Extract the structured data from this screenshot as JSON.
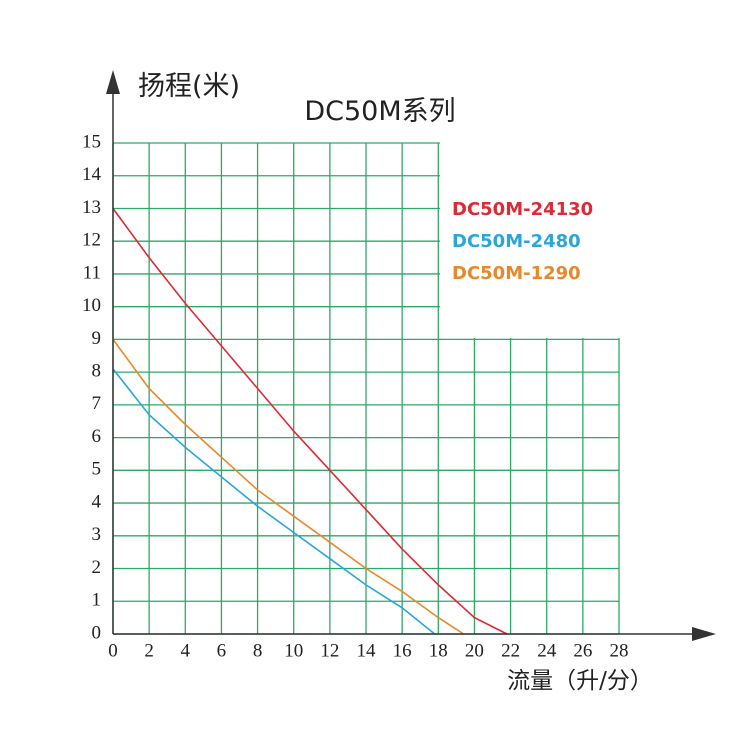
{
  "chart_data": {
    "type": "line",
    "title": "DC50M系列",
    "y_label": "扬程(米)",
    "x_label": "流量（升/分）",
    "xlim": [
      0,
      28
    ],
    "ylim": [
      0,
      15
    ],
    "xticks": [
      0,
      2,
      4,
      6,
      8,
      10,
      12,
      14,
      16,
      18,
      20,
      22,
      24,
      26,
      28
    ],
    "yticks": [
      0,
      1,
      2,
      3,
      4,
      5,
      6,
      7,
      8,
      9,
      10,
      11,
      12,
      13,
      14,
      15
    ],
    "grid": true,
    "grid_color": "#2fa866",
    "series": [
      {
        "name": "DC50M-24130",
        "color": "#dd2a35",
        "x": [
          0,
          2,
          4,
          6,
          8,
          10,
          12,
          14,
          16,
          18,
          20,
          21.8
        ],
        "values": [
          13,
          11.5,
          10.1,
          8.8,
          7.5,
          6.2,
          5.0,
          3.8,
          2.6,
          1.5,
          0.5,
          0
        ]
      },
      {
        "name": "DC50M-2480",
        "color": "#2aa7d8",
        "x": [
          0,
          2,
          4,
          6,
          8,
          10,
          12,
          14,
          16,
          17.8
        ],
        "values": [
          8.1,
          6.7,
          5.7,
          4.8,
          3.9,
          3.1,
          2.3,
          1.5,
          0.8,
          0
        ]
      },
      {
        "name": "DC50M-1290",
        "color": "#e8882a",
        "x": [
          0,
          2,
          4,
          6,
          8,
          10,
          12,
          14,
          16,
          18,
          19.4
        ],
        "values": [
          9,
          7.5,
          6.4,
          5.4,
          4.4,
          3.6,
          2.8,
          2.0,
          1.3,
          0.5,
          0
        ]
      }
    ]
  }
}
